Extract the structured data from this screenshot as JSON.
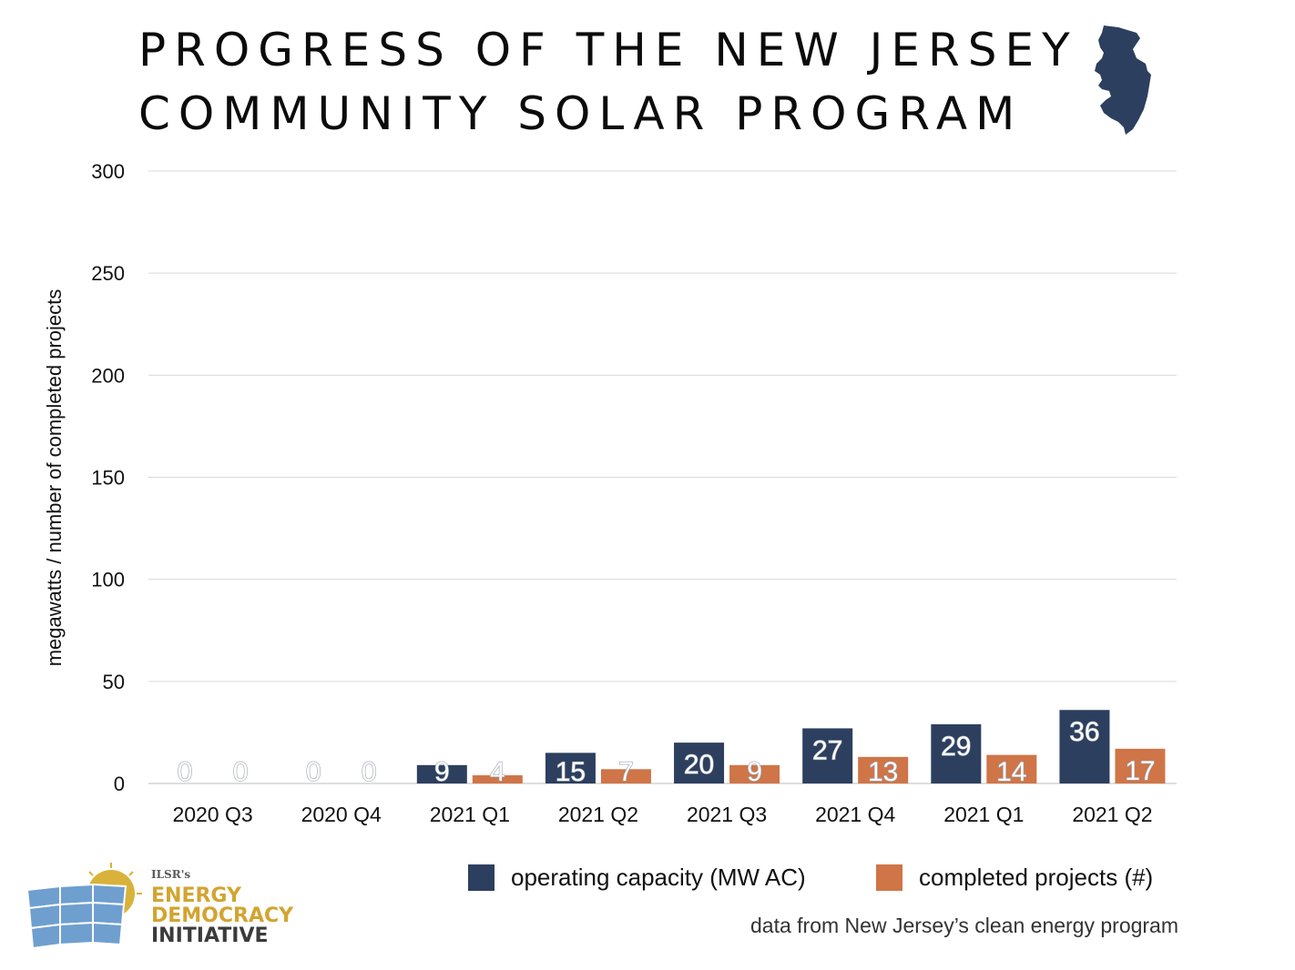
{
  "title": {
    "line1": "PROGRESS OF THE NEW JERSEY",
    "line2": "COMMUNITY SOLAR PROGRAM"
  },
  "icons": {
    "map": "new-jersey-map-icon",
    "logo": "solar-panel-sun-logo"
  },
  "colors": {
    "capacity": "#2d3f5f",
    "projects": "#cf7547",
    "grid": "#d9d9d9",
    "map": "#2d3f5f"
  },
  "legend": {
    "capacity_label": "operating capacity (MW AC)",
    "projects_label": "completed projects (#)"
  },
  "source_note": "data from New Jersey’s clean energy program",
  "logo": {
    "org": "ILSR's",
    "line1": "ENERGY",
    "line2": "DEMOCRACY",
    "line3": "INITIATIVE"
  },
  "chart_data": {
    "type": "bar",
    "categories": [
      "2020 Q3",
      "2020 Q4",
      "2021 Q1",
      "2021 Q2",
      "2021 Q3",
      "2021 Q4",
      "2021 Q1",
      "2021 Q2"
    ],
    "series": [
      {
        "name": "operating capacity (MW AC)",
        "values": [
          0,
          0,
          9,
          15,
          20,
          27,
          29,
          36
        ]
      },
      {
        "name": "completed projects (#)",
        "values": [
          0,
          0,
          4,
          7,
          9,
          13,
          14,
          17
        ]
      }
    ],
    "ylabel": "megawatts / number of completed projects",
    "xlabel": "",
    "ylim": [
      0,
      300
    ],
    "yticks": [
      0,
      50,
      100,
      150,
      200,
      250,
      300
    ],
    "grid": true,
    "legend_position": "bottom-right"
  }
}
